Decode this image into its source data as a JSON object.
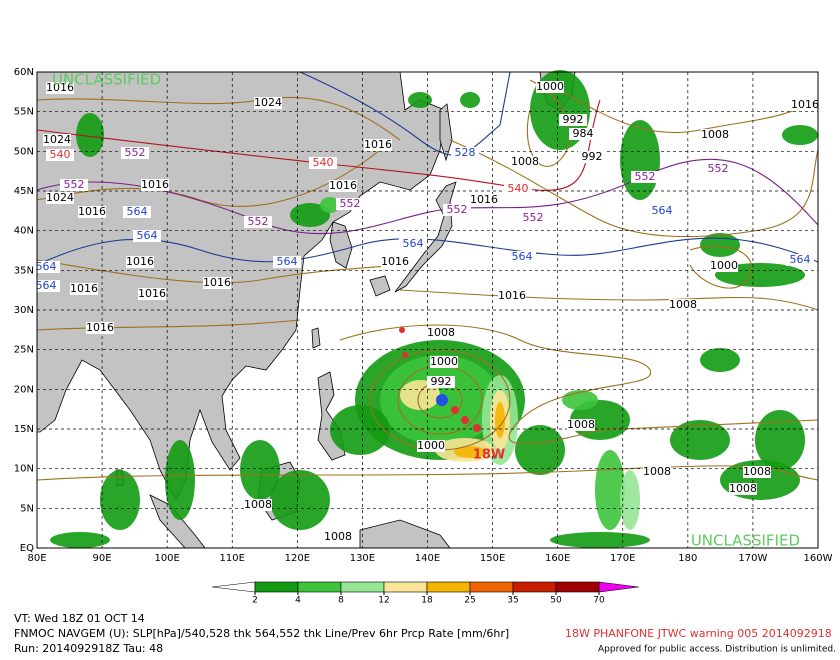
{
  "map": {
    "banner": [
      "UNCLASSIFIED",
      "UNCLASSIFIED"
    ],
    "lat_labels": [
      "60N",
      "55N",
      "50N",
      "45N",
      "40N",
      "35N",
      "30N",
      "25N",
      "20N",
      "15N",
      "10N",
      "5N",
      "EQ"
    ],
    "lon_labels": [
      "80E",
      "90E",
      "100E",
      "110E",
      "120E",
      "130E",
      "140E",
      "150E",
      "160E",
      "170E",
      "180",
      "170W",
      "160W"
    ],
    "contour_labels": [
      "1016",
      "1024",
      "1024",
      "540",
      "552",
      "1016",
      "552",
      "1024",
      "1016",
      "564",
      "564",
      "552",
      "1016",
      "564",
      "564",
      "1016",
      "1016",
      "1016",
      "1016",
      "564",
      "564",
      "1016",
      "1016",
      "540",
      "1016",
      "552",
      "528",
      "1008",
      "540",
      "552",
      "1016",
      "552",
      "564",
      "1016",
      "1000",
      "992",
      "984",
      "992",
      "552",
      "552",
      "564",
      "1008",
      "1016",
      "1000",
      "564",
      "1008",
      "1008",
      "1000",
      "992",
      "1008",
      "1000",
      "1008",
      "1008",
      "1008",
      "1008",
      "1008"
    ],
    "storm_label": "18W",
    "colorbar": {
      "ticks": [
        2,
        4,
        8,
        12,
        18,
        25,
        35,
        50,
        70
      ],
      "under_color": "#ffffff",
      "over_color": "#f000f0",
      "colors": [
        "#129b12",
        "#3cc43c",
        "#96e696",
        "#fae696",
        "#f5b400",
        "#f06400",
        "#c81e00",
        "#a00000"
      ]
    },
    "footer": {
      "valid": "VT: Wed 18Z 01 OCT 14",
      "product": "FNMOC NAVGEM (U): SLP[hPa]/540,528 thk 564,552 thk Line/Prev 6hr Prcp Rate [mm/6hr]",
      "run": "Run: 2014092918Z Tau: 48",
      "warning": "18W PHANFONE JTWC warning 005 2014092918",
      "release": "Approved for public access. Distribution is unlimited."
    }
  }
}
